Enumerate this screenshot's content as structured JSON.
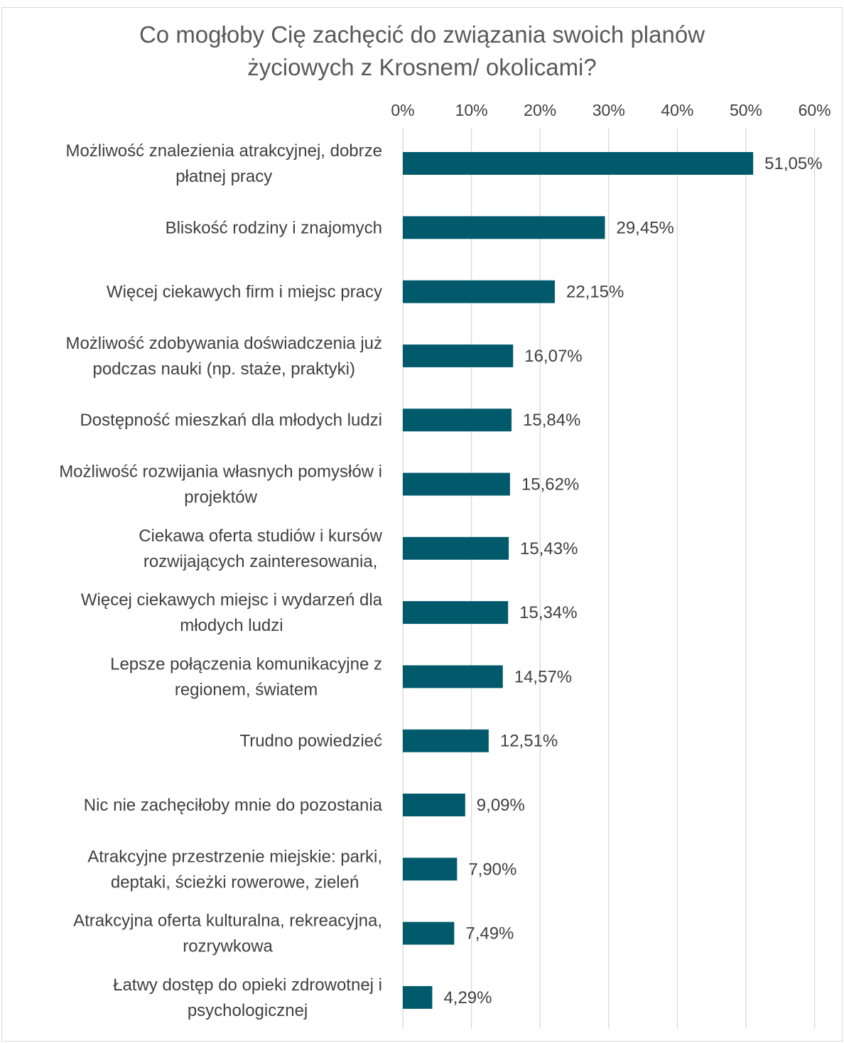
{
  "chart_data": {
    "type": "bar",
    "orientation": "horizontal",
    "title": [
      "Co mogłoby Cię zachęcić do związania swoich planów",
      "życiowych z Krosnem/ okolicami?"
    ],
    "categories": [
      [
        "Możliwość znalezienia atrakcyjnej, dobrze",
        "płatnej pracy"
      ],
      [
        "Bliskość rodziny i znajomych"
      ],
      [
        "Więcej ciekawych firm i miejsc pracy"
      ],
      [
        "Możliwość zdobywania doświadczenia już",
        "podczas nauki (np. staże, praktyki)"
      ],
      [
        "Dostępność mieszkań dla młodych ludzi"
      ],
      [
        "Możliwość rozwijania własnych pomysłów i",
        "projektów"
      ],
      [
        "Ciekawa oferta studiów i kursów",
        "rozwijających zainteresowania,"
      ],
      [
        "Więcej ciekawych miejsc i wydarzeń dla",
        "młodych ludzi"
      ],
      [
        "Lepsze połączenia komunikacyjne z",
        "regionem, światem"
      ],
      [
        "Trudno powiedzieć"
      ],
      [
        "Nic nie zachęciłoby mnie do pozostania"
      ],
      [
        "Atrakcyjne przestrzenie miejskie: parki,",
        "deptaki, ścieżki rowerowe, zieleń"
      ],
      [
        "Atrakcyjna oferta kulturalna, rekreacyjna,",
        "rozrywkowa"
      ],
      [
        "Łatwy dostęp do opieki zdrowotnej i",
        "psychologicznej"
      ]
    ],
    "values": [
      51.05,
      29.45,
      22.15,
      16.07,
      15.84,
      15.62,
      15.43,
      15.34,
      14.57,
      12.51,
      9.09,
      7.9,
      7.49,
      4.29
    ],
    "value_labels": [
      "51,05%",
      "29,45%",
      "22,15%",
      "16,07%",
      "15,84%",
      "15,62%",
      "15,43%",
      "15,34%",
      "14,57%",
      "12,51%",
      "9,09%",
      "7,90%",
      "7,49%",
      "4,29%"
    ],
    "xlim": [
      0,
      60
    ],
    "ticks": [
      0,
      10,
      20,
      30,
      40,
      50,
      60
    ],
    "tick_labels": [
      "0%",
      "10%",
      "20%",
      "30%",
      "40%",
      "50%",
      "60%"
    ],
    "axis_position": "top",
    "grid": true,
    "bar_color": "#005a6b",
    "grid_color": "#d9d9d9",
    "text_color": "#404040"
  }
}
